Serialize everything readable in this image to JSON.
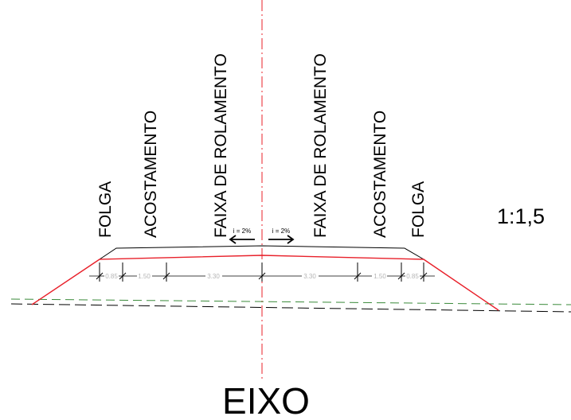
{
  "labels": {
    "left": [
      "FOLGA",
      "ACOSTAMENTO",
      "FAIXA DE ROLAMENTO"
    ],
    "right": [
      "FAIXA DE ROLAMENTO",
      "ACOSTAMENTO",
      "FOLGA"
    ]
  },
  "slope_ratio": "1:1,5",
  "axis_label": "EIXO",
  "inclination": {
    "left": "i = 2%",
    "right": "i = 2%"
  },
  "dimensions": {
    "left": [
      "0.85",
      "1.50",
      "3.30"
    ],
    "right": [
      "3.30",
      "1.50",
      "0.85"
    ]
  },
  "colors": {
    "section_line": "#e8202a",
    "centerline": "#e8202a",
    "terrain_green": "#3a8a3a",
    "terrain_black": "#000000",
    "dimension_text": "#b5b5b5"
  }
}
